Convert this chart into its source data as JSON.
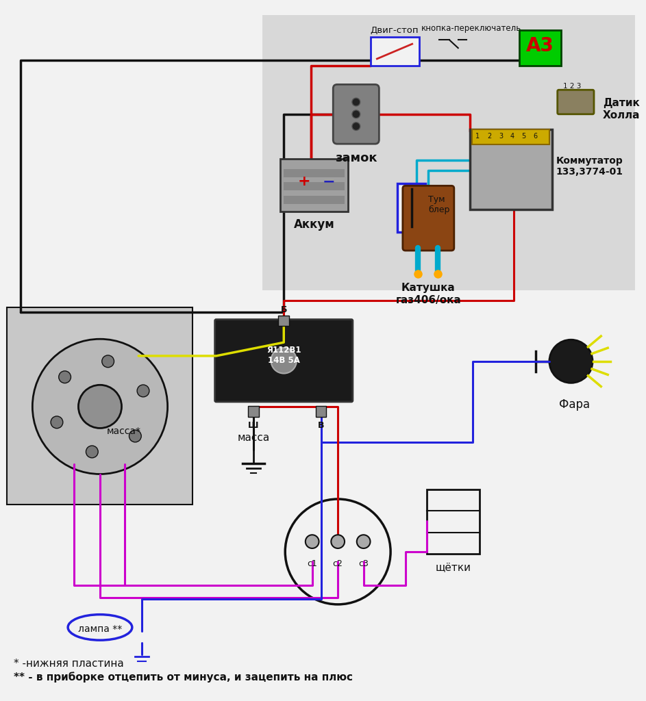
{
  "bg_color": "#f2f2f2",
  "footnote1": "* -нижняя пластина",
  "footnote2": "** - в приборке отцепить от минуса, и зацепить на плюс",
  "labels": {
    "zamok": "замок",
    "akkum": "Аккум",
    "tumbler": "Тум\nблер",
    "katushka": "Катушка\nгаз406/ока",
    "kommutator": "Коммутатор\n133,3774-01",
    "datik": "Датик\nХолла",
    "a3": "А3",
    "dvig_stop": "Двиг-стоп",
    "knopka": "кнопка-переключатель",
    "massa_gen": "масса*",
    "massa_reg": "масса",
    "fara": "Фара",
    "schotki": "щётки",
    "lampa": "лампа **",
    "reg_label": "Я112В1\n14В 5А",
    "c1": "с1",
    "c2": "с2",
    "c3": "с3",
    "b_pin": "Б",
    "sh_pin": "Ш",
    "v_pin": "В"
  },
  "colors": {
    "red": "#cc0000",
    "black": "#111111",
    "blue": "#2222dd",
    "yellow": "#dddd00",
    "magenta": "#cc00cc",
    "cyan": "#00aacc",
    "green": "#00aa00",
    "white": "#ffffff",
    "upper_bg": "#d8d8d8",
    "gen_bg": "#cccccc",
    "reg_black": "#1a1a1a"
  }
}
